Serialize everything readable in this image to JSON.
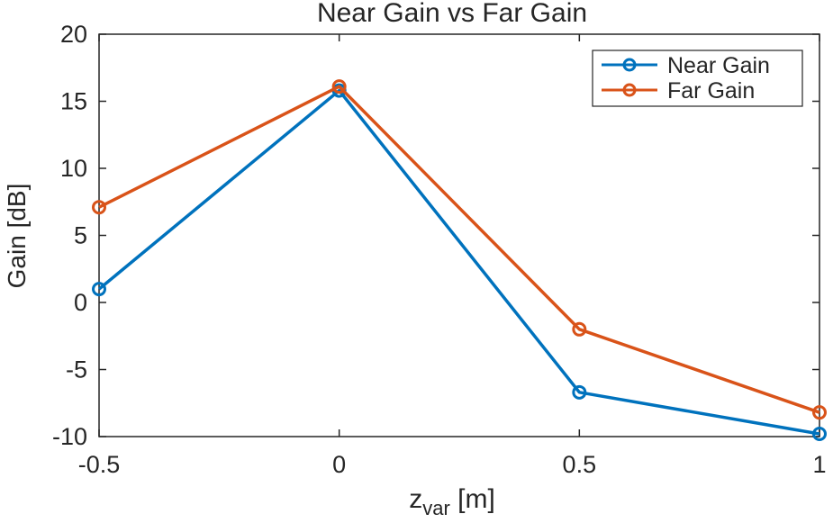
{
  "chart_data": {
    "type": "line",
    "title": "Near Gain vs Far Gain",
    "xlabel": {
      "base": "z",
      "sub": "var",
      "rest": " [m]"
    },
    "ylabel": "Gain [dB]",
    "x": [
      -0.5,
      0,
      0.5,
      1
    ],
    "xlim": [
      -0.5,
      1
    ],
    "ylim": [
      -10,
      20
    ],
    "xticks": [
      -0.5,
      0,
      0.5,
      1
    ],
    "xtick_labels": [
      "-0.5",
      "0",
      "0.5",
      "1"
    ],
    "yticks": [
      -10,
      -5,
      0,
      5,
      10,
      15,
      20
    ],
    "ytick_labels": [
      "-10",
      "-5",
      "0",
      "5",
      "10",
      "15",
      "20"
    ],
    "grid": false,
    "legend_position": "top-right",
    "marker": "circle",
    "series": [
      {
        "name": "Near Gain",
        "color": "#0072BD",
        "values": [
          1.0,
          15.8,
          -6.7,
          -9.8
        ]
      },
      {
        "name": "Far Gain",
        "color": "#D95319",
        "values": [
          7.1,
          16.1,
          -2.0,
          -8.2
        ]
      }
    ]
  }
}
